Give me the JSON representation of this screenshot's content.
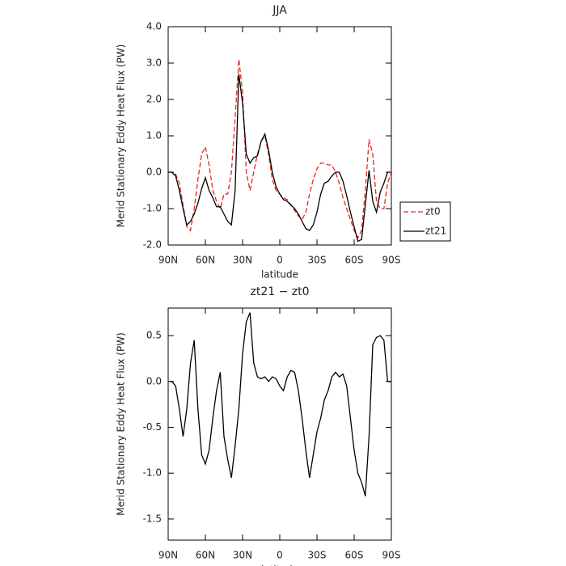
{
  "chart_data": [
    {
      "type": "line",
      "title": "JJA",
      "x_label": "latitude",
      "y_label": "Merid Stationary Eddy Heat Flux (PW)",
      "x": [
        90,
        87,
        84,
        81,
        78,
        75,
        72,
        69,
        66,
        63,
        60,
        57,
        54,
        51,
        48,
        45,
        42,
        39,
        36,
        33,
        30,
        27,
        24,
        21,
        18,
        15,
        12,
        9,
        6,
        3,
        0,
        -3,
        -6,
        -9,
        -12,
        -15,
        -18,
        -21,
        -24,
        -27,
        -30,
        -33,
        -36,
        -39,
        -42,
        -45,
        -48,
        -51,
        -54,
        -57,
        -60,
        -63,
        -66,
        -69,
        -72,
        -75,
        -78,
        -81,
        -84,
        -87,
        -90
      ],
      "series": [
        {
          "name": "zt0",
          "color": "#e8261f",
          "dashed": true,
          "values": [
            0,
            0,
            -0.05,
            -0.3,
            -0.9,
            -1.5,
            -1.6,
            -1.0,
            -0.2,
            0.5,
            0.7,
            0.2,
            -0.5,
            -0.8,
            -1.0,
            -0.6,
            -0.6,
            0.0,
            1.5,
            3.1,
            2.2,
            0.0,
            -0.5,
            0.0,
            0.5,
            0.85,
            1.0,
            0.5,
            -0.2,
            -0.5,
            -0.6,
            -0.7,
            -0.75,
            -0.9,
            -1.05,
            -1.2,
            -1.3,
            -1.1,
            -0.6,
            -0.2,
            0.1,
            0.25,
            0.25,
            0.2,
            0.2,
            0.0,
            -0.3,
            -0.7,
            -1.0,
            -1.3,
            -1.6,
            -1.8,
            -1.6,
            -0.5,
            0.9,
            0.5,
            -0.8,
            -1.0,
            -1.0,
            -0.3,
            0.0
          ]
        },
        {
          "name": "zt21",
          "color": "#000000",
          "dashed": false,
          "values": [
            0,
            0,
            -0.1,
            -0.5,
            -1.0,
            -1.45,
            -1.35,
            -1.15,
            -0.85,
            -0.45,
            -0.15,
            -0.5,
            -0.7,
            -0.95,
            -0.95,
            -1.15,
            -1.35,
            -1.45,
            -0.5,
            2.7,
            1.9,
            0.5,
            0.25,
            0.4,
            0.45,
            0.85,
            1.05,
            0.6,
            0.0,
            -0.4,
            -0.6,
            -0.75,
            -0.8,
            -0.9,
            -1.0,
            -1.15,
            -1.35,
            -1.55,
            -1.6,
            -1.45,
            -1.1,
            -0.6,
            -0.3,
            -0.25,
            -0.1,
            0.0,
            0.0,
            -0.25,
            -0.65,
            -1.1,
            -1.5,
            -1.9,
            -1.85,
            -0.9,
            0.05,
            -0.8,
            -1.1,
            -0.55,
            -0.3,
            0.0,
            0.0
          ]
        }
      ],
      "xlim": [
        90,
        -90
      ],
      "xticks": [
        {
          "value": 90,
          "label": "90N"
        },
        {
          "value": 60,
          "label": "60N"
        },
        {
          "value": 30,
          "label": "30N"
        },
        0,
        {
          "value": -30,
          "label": "30S"
        },
        {
          "value": -60,
          "label": "60S"
        },
        {
          "value": -90,
          "label": "90S"
        }
      ],
      "ylim": [
        -2,
        4
      ],
      "yticks": [
        {
          "value": -2,
          "label": "-2.0"
        },
        {
          "value": -1,
          "label": "-1.0"
        },
        {
          "value": 0,
          "label": "0.0"
        },
        {
          "value": 1,
          "label": "1.0"
        },
        {
          "value": 2,
          "label": "2.0"
        },
        {
          "value": 3,
          "label": "3.0"
        },
        {
          "value": 4,
          "label": "4.0"
        }
      ],
      "legend": "outside right"
    },
    {
      "type": "line",
      "title": "zt21 − zt0",
      "x_label": "latitude",
      "y_label": "Merid Stationary Eddy Heat Flux (PW)",
      "x": [
        90,
        87,
        84,
        81,
        78,
        75,
        72,
        69,
        66,
        63,
        60,
        57,
        54,
        51,
        48,
        45,
        42,
        39,
        36,
        33,
        30,
        27,
        24,
        21,
        18,
        15,
        12,
        9,
        6,
        3,
        0,
        -3,
        -6,
        -9,
        -12,
        -15,
        -18,
        -21,
        -24,
        -27,
        -30,
        -33,
        -36,
        -39,
        -42,
        -45,
        -48,
        -51,
        -54,
        -57,
        -60,
        -63,
        -66,
        -69,
        -72,
        -75,
        -78,
        -81,
        -84,
        -87,
        -90
      ],
      "series": [
        {
          "color": "#000000",
          "dashed": false,
          "values": [
            0,
            0,
            -0.05,
            -0.3,
            -0.6,
            -0.3,
            0.2,
            0.45,
            -0.3,
            -0.8,
            -0.9,
            -0.75,
            -0.4,
            -0.1,
            0.1,
            -0.6,
            -0.85,
            -1.05,
            -0.7,
            -0.3,
            0.3,
            0.65,
            0.75,
            0.2,
            0.05,
            0.03,
            0.05,
            0.0,
            0.05,
            0.03,
            -0.05,
            -0.1,
            0.05,
            0.12,
            0.1,
            -0.1,
            -0.4,
            -0.75,
            -1.05,
            -0.8,
            -0.55,
            -0.4,
            -0.2,
            -0.1,
            0.05,
            0.1,
            0.05,
            0.08,
            -0.05,
            -0.4,
            -0.75,
            -1.0,
            -1.1,
            -1.25,
            -0.6,
            0.4,
            0.48,
            0.5,
            0.45,
            0.0,
            0.0
          ]
        }
      ],
      "xlim": [
        90,
        -90
      ],
      "xticks": [
        {
          "value": 90,
          "label": "90N"
        },
        {
          "value": 60,
          "label": "60N"
        },
        {
          "value": 30,
          "label": "30N"
        },
        0,
        {
          "value": -30,
          "label": "30S"
        },
        {
          "value": -60,
          "label": "60S"
        },
        {
          "value": -90,
          "label": "90S"
        }
      ],
      "ylim": [
        -1.73,
        0.8
      ],
      "yticks": [
        {
          "value": -1.5,
          "label": "-1.5"
        },
        {
          "value": -1,
          "label": "-1.0"
        },
        -0.5,
        {
          "value": 0,
          "label": "0.0"
        },
        0.5
      ]
    }
  ]
}
